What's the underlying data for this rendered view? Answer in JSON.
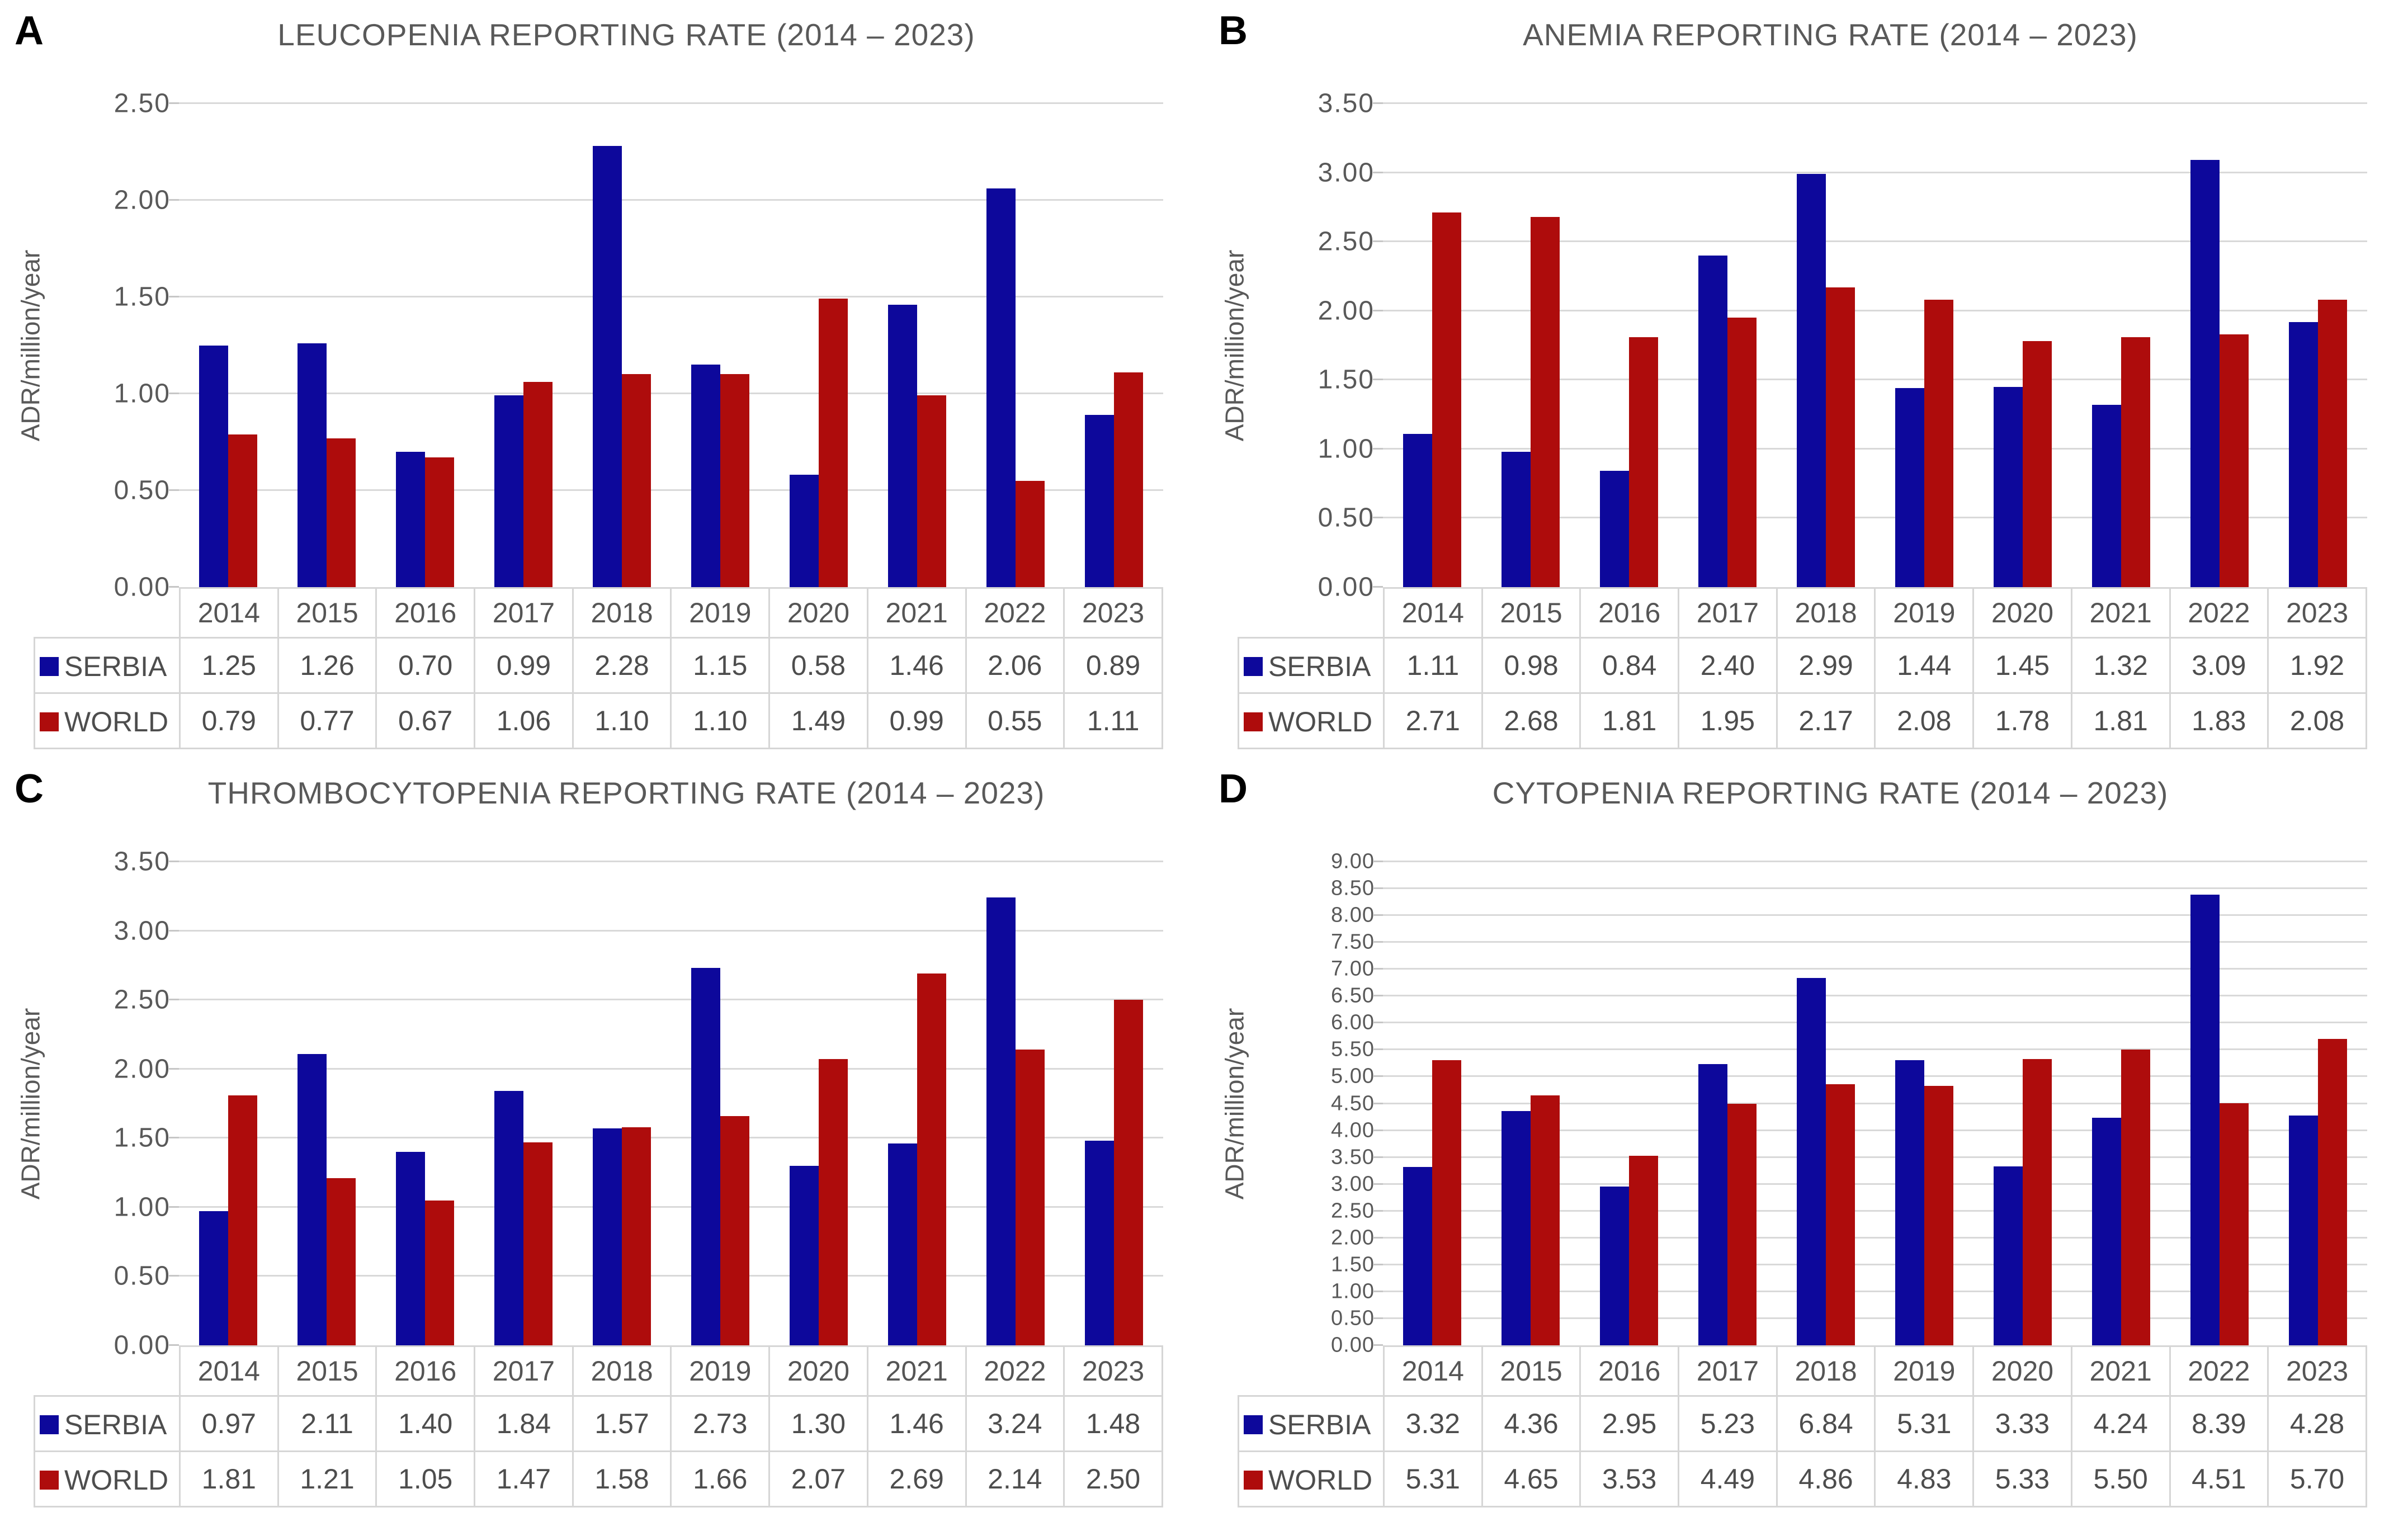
{
  "figure": {
    "background": "#FFFFFF",
    "legend_entries": [
      "SERBIA",
      "WORLD"
    ]
  },
  "colors": {
    "serbia_blue": "#0D089B",
    "world_red": "#AE0C0C",
    "gridline": "#D9D9D9",
    "tick_stub": "#C6C6C6",
    "table_border": "#D6D6D6",
    "title_text": "#595959",
    "tick_text": "#595959",
    "table_text": "#4D4D4D",
    "panel_label_text": "#000000"
  },
  "chart_data": [
    {
      "type": "bar",
      "panel_label": "A",
      "title": "LEUCOPENIA REPORTING RATE (2014 – 2023)",
      "ylabel": "ADR/million/year",
      "xlabel": "",
      "ylim": [
        0,
        2.5
      ],
      "ytick_step": 0.5,
      "grid": true,
      "legend_position": "table-left",
      "categories": [
        "2014",
        "2015",
        "2016",
        "2017",
        "2018",
        "2019",
        "2020",
        "2021",
        "2022",
        "2023"
      ],
      "series": [
        {
          "name": "SERBIA",
          "color_key": "serbia_blue",
          "values": [
            1.25,
            1.26,
            0.7,
            0.99,
            2.28,
            1.15,
            0.58,
            1.46,
            2.06,
            0.89
          ]
        },
        {
          "name": "WORLD",
          "color_key": "world_red",
          "values": [
            0.79,
            0.77,
            0.67,
            1.06,
            1.1,
            1.1,
            1.49,
            0.99,
            0.55,
            1.11
          ]
        }
      ]
    },
    {
      "type": "bar",
      "panel_label": "B",
      "title": "ANEMIA REPORTING RATE (2014 – 2023)",
      "ylabel": "ADR/million/year",
      "xlabel": "",
      "ylim": [
        0,
        3.5
      ],
      "ytick_step": 0.5,
      "grid": true,
      "legend_position": "table-left",
      "categories": [
        "2014",
        "2015",
        "2016",
        "2017",
        "2018",
        "2019",
        "2020",
        "2021",
        "2022",
        "2023"
      ],
      "series": [
        {
          "name": "SERBIA",
          "color_key": "serbia_blue",
          "values": [
            1.11,
            0.98,
            0.84,
            2.4,
            2.99,
            1.44,
            1.45,
            1.32,
            3.09,
            1.92
          ]
        },
        {
          "name": "WORLD",
          "color_key": "world_red",
          "values": [
            2.71,
            2.68,
            1.81,
            1.95,
            2.17,
            2.08,
            1.78,
            1.81,
            1.83,
            2.08
          ]
        }
      ]
    },
    {
      "type": "bar",
      "panel_label": "C",
      "title": "THROMBOCYTOPENIA REPORTING RATE (2014 – 2023)",
      "ylabel": "ADR/million/year",
      "xlabel": "",
      "ylim": [
        0,
        3.5
      ],
      "ytick_step": 0.5,
      "grid": true,
      "legend_position": "table-left",
      "categories": [
        "2014",
        "2015",
        "2016",
        "2017",
        "2018",
        "2019",
        "2020",
        "2021",
        "2022",
        "2023"
      ],
      "series": [
        {
          "name": "SERBIA",
          "color_key": "serbia_blue",
          "values": [
            0.97,
            2.11,
            1.4,
            1.84,
            1.57,
            2.73,
            1.3,
            1.46,
            3.24,
            1.48
          ]
        },
        {
          "name": "WORLD",
          "color_key": "world_red",
          "values": [
            1.81,
            1.21,
            1.05,
            1.47,
            1.58,
            1.66,
            2.07,
            2.69,
            2.14,
            2.5
          ]
        }
      ]
    },
    {
      "type": "bar",
      "panel_label": "D",
      "title": "CYTOPENIA REPORTING RATE (2014 – 2023)",
      "ylabel": "ADR/million/year",
      "xlabel": "",
      "ylim": [
        0,
        9.0
      ],
      "ytick_step": 0.5,
      "grid": true,
      "legend_position": "table-left",
      "categories": [
        "2014",
        "2015",
        "2016",
        "2017",
        "2018",
        "2019",
        "2020",
        "2021",
        "2022",
        "2023"
      ],
      "series": [
        {
          "name": "SERBIA",
          "color_key": "serbia_blue",
          "values": [
            3.32,
            4.36,
            2.95,
            5.23,
            6.84,
            5.31,
            3.33,
            4.24,
            8.39,
            4.28
          ]
        },
        {
          "name": "WORLD",
          "color_key": "world_red",
          "values": [
            5.31,
            4.65,
            3.53,
            4.49,
            4.86,
            4.83,
            5.33,
            5.5,
            4.51,
            5.7
          ]
        }
      ]
    }
  ]
}
